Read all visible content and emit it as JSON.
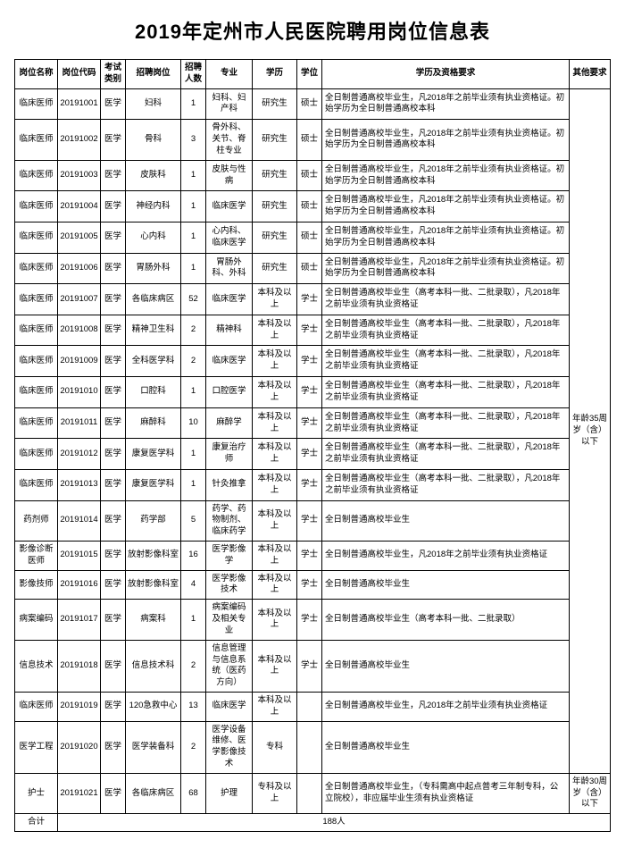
{
  "title": "2019年定州市人民医院聘用岗位信息表",
  "columns": [
    "岗位名称",
    "岗位代码",
    "考试类别",
    "招聘岗位",
    "招聘人数",
    "专业",
    "学历",
    "学位",
    "学历及资格要求",
    "其他要求"
  ],
  "req_a": "全日制普通高校毕业生，凡2018年之前毕业须有执业资格证。初始学历为全日制普通高校本科",
  "req_b": "全日制普通高校毕业生（高考本科一批、二批录取），凡2018年之前毕业须有执业资格证",
  "req_c": "全日制普通高校毕业生",
  "req_d": "全日制普通高校毕业生，凡2018年之前毕业须有执业资格证",
  "req_e": "全日制普通高校毕业生（高考本科一批、二批录取）",
  "req_f": "全日制普通高校毕业生，（专科需高中起点普考三年制专科，公立院校），非应届毕业生须有执业资格证",
  "other1": "年龄35周岁（含）以下",
  "other2": "年龄30周岁（含）以下",
  "rows": [
    {
      "name": "临床医师",
      "code": "20191001",
      "cat": "医学",
      "post": "妇科",
      "n": "1",
      "major": "妇科、妇产科",
      "edu": "研究生",
      "deg": "硕士",
      "reqKey": "req_a"
    },
    {
      "name": "临床医师",
      "code": "20191002",
      "cat": "医学",
      "post": "骨科",
      "n": "3",
      "major": "骨外科、关节、脊柱专业",
      "edu": "研究生",
      "deg": "硕士",
      "reqKey": "req_a"
    },
    {
      "name": "临床医师",
      "code": "20191003",
      "cat": "医学",
      "post": "皮肤科",
      "n": "1",
      "major": "皮肤与性病",
      "edu": "研究生",
      "deg": "硕士",
      "reqKey": "req_a"
    },
    {
      "name": "临床医师",
      "code": "20191004",
      "cat": "医学",
      "post": "神经内科",
      "n": "1",
      "major": "临床医学",
      "edu": "研究生",
      "deg": "硕士",
      "reqKey": "req_a"
    },
    {
      "name": "临床医师",
      "code": "20191005",
      "cat": "医学",
      "post": "心内科",
      "n": "1",
      "major": "心内科、临床医学",
      "edu": "研究生",
      "deg": "硕士",
      "reqKey": "req_a"
    },
    {
      "name": "临床医师",
      "code": "20191006",
      "cat": "医学",
      "post": "胃肠外科",
      "n": "1",
      "major": "胃肠外科、外科",
      "edu": "研究生",
      "deg": "硕士",
      "reqKey": "req_a"
    },
    {
      "name": "临床医师",
      "code": "20191007",
      "cat": "医学",
      "post": "各临床病区",
      "n": "52",
      "major": "临床医学",
      "edu": "本科及以上",
      "deg": "学士",
      "reqKey": "req_b"
    },
    {
      "name": "临床医师",
      "code": "20191008",
      "cat": "医学",
      "post": "精神卫生科",
      "n": "2",
      "major": "精神科",
      "edu": "本科及以上",
      "deg": "学士",
      "reqKey": "req_b"
    },
    {
      "name": "临床医师",
      "code": "20191009",
      "cat": "医学",
      "post": "全科医学科",
      "n": "2",
      "major": "临床医学",
      "edu": "本科及以上",
      "deg": "学士",
      "reqKey": "req_b"
    },
    {
      "name": "临床医师",
      "code": "20191010",
      "cat": "医学",
      "post": "口腔科",
      "n": "1",
      "major": "口腔医学",
      "edu": "本科及以上",
      "deg": "学士",
      "reqKey": "req_b"
    },
    {
      "name": "临床医师",
      "code": "20191011",
      "cat": "医学",
      "post": "麻醉科",
      "n": "10",
      "major": "麻醉学",
      "edu": "本科及以上",
      "deg": "学士",
      "reqKey": "req_b"
    },
    {
      "name": "临床医师",
      "code": "20191012",
      "cat": "医学",
      "post": "康复医学科",
      "n": "1",
      "major": "康复治疗师",
      "edu": "本科及以上",
      "deg": "学士",
      "reqKey": "req_b"
    },
    {
      "name": "临床医师",
      "code": "20191013",
      "cat": "医学",
      "post": "康复医学科",
      "n": "1",
      "major": "针灸推拿",
      "edu": "本科及以上",
      "deg": "学士",
      "reqKey": "req_b"
    },
    {
      "name": "药剂师",
      "code": "20191014",
      "cat": "医学",
      "post": "药学部",
      "n": "5",
      "major": "药学、药物制剂、临床药学",
      "edu": "本科及以上",
      "deg": "学士",
      "reqKey": "req_c"
    },
    {
      "name": "影像诊断医师",
      "code": "20191015",
      "cat": "医学",
      "post": "放射影像科室",
      "n": "16",
      "major": "医学影像学",
      "edu": "本科及以上",
      "deg": "学士",
      "reqKey": "req_d"
    },
    {
      "name": "影像技师",
      "code": "20191016",
      "cat": "医学",
      "post": "放射影像科室",
      "n": "4",
      "major": "医学影像技术",
      "edu": "本科及以上",
      "deg": "学士",
      "reqKey": "req_c"
    },
    {
      "name": "病案编码",
      "code": "20191017",
      "cat": "医学",
      "post": "病案科",
      "n": "1",
      "major": "病案编码及相关专业",
      "edu": "本科及以上",
      "deg": "学士",
      "reqKey": "req_e"
    },
    {
      "name": "信息技术",
      "code": "20191018",
      "cat": "医学",
      "post": "信息技术科",
      "n": "2",
      "major": "信息管理与信息系统（医药方向）",
      "edu": "本科及以上",
      "deg": "学士",
      "reqKey": "req_c"
    },
    {
      "name": "临床医师",
      "code": "20191019",
      "cat": "医学",
      "post": "120急救中心",
      "n": "13",
      "major": "临床医学",
      "edu": "本科及以上",
      "deg": "",
      "reqKey": "req_d"
    },
    {
      "name": "医学工程",
      "code": "20191020",
      "cat": "医学",
      "post": "医学装备科",
      "n": "2",
      "major": "医学设备维修、医学影像技术",
      "edu": "专科",
      "deg": "",
      "reqKey": "req_c"
    },
    {
      "name": "护士",
      "code": "20191021",
      "cat": "医学",
      "post": "各临床病区",
      "n": "68",
      "major": "护理",
      "edu": "专科及以上",
      "deg": "",
      "reqKey": "req_f"
    }
  ],
  "total_label": "合计",
  "total_value": "188人"
}
